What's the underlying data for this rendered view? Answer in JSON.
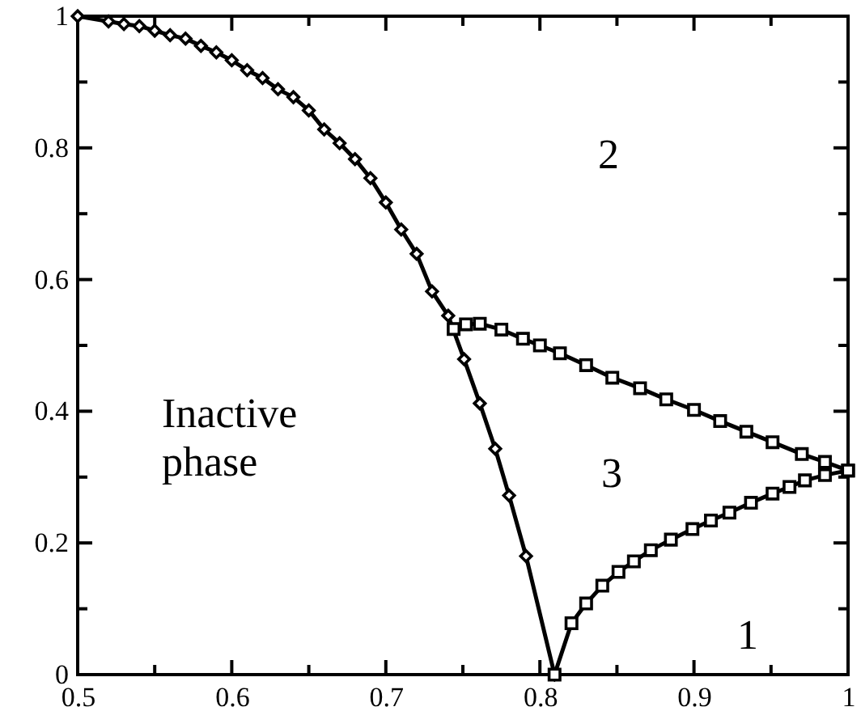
{
  "chart_data": {
    "type": "line",
    "xlim": [
      0.5,
      1
    ],
    "ylim": [
      0,
      1
    ],
    "xticks": [
      0.5,
      {
        "value": 0.55,
        "label": null
      },
      0.6,
      {
        "value": 0.65,
        "label": null
      },
      0.7,
      {
        "value": 0.75,
        "label": null
      },
      0.8,
      {
        "value": 0.85,
        "label": null
      },
      0.9,
      {
        "value": 0.95,
        "label": null
      },
      1
    ],
    "yticks": [
      0,
      {
        "value": 0.1,
        "label": null
      },
      0.2,
      {
        "value": 0.3,
        "label": null
      },
      0.4,
      {
        "value": 0.5,
        "label": null
      },
      0.6,
      {
        "value": 0.7,
        "label": null
      },
      0.8,
      {
        "value": 0.9,
        "label": null
      },
      1
    ],
    "grid": false,
    "line_style": "solid",
    "series": [
      {
        "color": "#000000",
        "marker": "diamond",
        "x": [
          0.5,
          0.52,
          0.53,
          0.54,
          0.55,
          0.56,
          0.57,
          0.58,
          0.59,
          0.6,
          0.61,
          0.62,
          0.63,
          0.64,
          0.65,
          0.66,
          0.67,
          0.68,
          0.69,
          0.7,
          0.71,
          0.72,
          0.73,
          0.7405,
          0.7508,
          0.761,
          0.771,
          0.78,
          0.791,
          0.8095
        ],
        "values": [
          1,
          0.992,
          0.988,
          0.985,
          0.978,
          0.971,
          0.966,
          0.955,
          0.945,
          0.933,
          0.918,
          0.906,
          0.889,
          0.877,
          0.857,
          0.828,
          0.807,
          0.783,
          0.754,
          0.717,
          0.676,
          0.639,
          0.582,
          0.545,
          0.479,
          0.412,
          0.343,
          0.272,
          0.18,
          0
        ]
      },
      {
        "color": "#000000",
        "marker": "square",
        "x": [
          0.744,
          0.752,
          0.761,
          0.775,
          0.789,
          0.8,
          0.813,
          0.83,
          0.847,
          0.865,
          0.882,
          0.9,
          0.917,
          0.934,
          0.951,
          0.97,
          0.985,
          1
        ],
        "values": [
          0.525,
          0.532,
          0.533,
          0.524,
          0.51,
          0.5,
          0.488,
          0.47,
          0.451,
          0.435,
          0.418,
          0.402,
          0.385,
          0.369,
          0.353,
          0.335,
          0.323,
          0.31
        ]
      },
      {
        "color": "#000000",
        "marker": "square",
        "x": [
          0.8095,
          0.8205,
          0.83,
          0.8405,
          0.851,
          0.861,
          0.872,
          0.885,
          0.899,
          0.911,
          0.923,
          0.937,
          0.951,
          0.962,
          0.972,
          0.985,
          1
        ],
        "values": [
          0,
          0.078,
          0.108,
          0.135,
          0.156,
          0.172,
          0.189,
          0.205,
          0.221,
          0.234,
          0.246,
          0.261,
          0.275,
          0.285,
          0.295,
          0.303,
          0.31
        ]
      }
    ],
    "annotations": [
      "2",
      "3",
      "1",
      "Inactive\nphase"
    ]
  }
}
